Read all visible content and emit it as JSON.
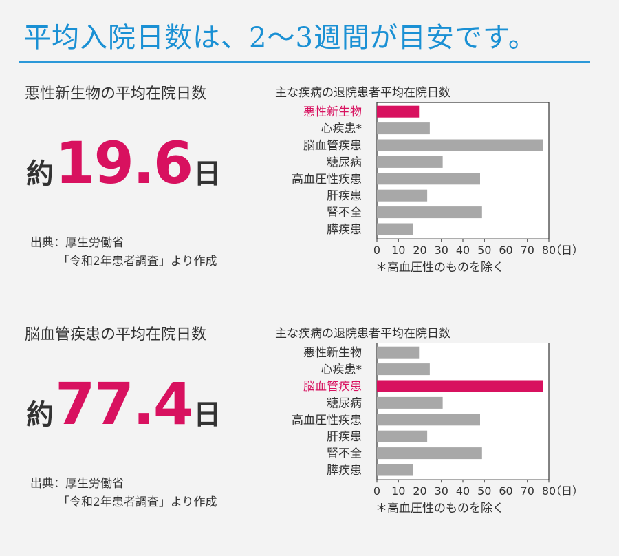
{
  "page_title": "平均入院日数は、2〜3週間が目安です。",
  "colors": {
    "accent": "#d8115f",
    "title_blue": "#1a90d4",
    "bar": "#a8a8a8",
    "background": "#f3f3f3"
  },
  "sections": [
    {
      "title": "悪性新生物の平均在院日数",
      "big_prefix": "約",
      "big_value": "19.6",
      "big_suffix": "日",
      "source_line1": "出典：厚生労働省",
      "source_line2": "「令和2年患者調査」より作成",
      "chart_title": "主な疾病の退院患者平均在院日数",
      "footnote": "＊高血圧性のものを除く"
    },
    {
      "title": "脳血管疾患の平均在院日数",
      "big_prefix": "約",
      "big_value": "77.4",
      "big_suffix": "日",
      "source_line1": "出典：厚生労働省",
      "source_line2": "「令和2年患者調査」より作成",
      "chart_title": "主な疾病の退院患者平均在院日数",
      "footnote": "＊高血圧性のものを除く"
    }
  ],
  "chart_data": [
    {
      "type": "bar",
      "orientation": "horizontal",
      "categories": [
        "悪性新生物",
        "心疾患*",
        "脳血管疾患",
        "糖尿病",
        "高血圧性疾患",
        "肝疾患",
        "腎不全",
        "膵疾患"
      ],
      "values": [
        19.6,
        24.6,
        77.4,
        30.6,
        48.0,
        23.4,
        48.9,
        16.8
      ],
      "highlight_index": 0,
      "xlim": [
        0,
        80
      ],
      "xticks": [
        0,
        10,
        20,
        30,
        40,
        50,
        60,
        70,
        80
      ],
      "xunit": "（日）",
      "grid": false
    },
    {
      "type": "bar",
      "orientation": "horizontal",
      "categories": [
        "悪性新生物",
        "心疾患*",
        "脳血管疾患",
        "糖尿病",
        "高血圧性疾患",
        "肝疾患",
        "腎不全",
        "膵疾患"
      ],
      "values": [
        19.6,
        24.6,
        77.4,
        30.6,
        48.0,
        23.4,
        48.9,
        16.8
      ],
      "highlight_index": 2,
      "xlim": [
        0,
        80
      ],
      "xticks": [
        0,
        10,
        20,
        30,
        40,
        50,
        60,
        70,
        80
      ],
      "xunit": "（日）",
      "grid": false
    }
  ]
}
